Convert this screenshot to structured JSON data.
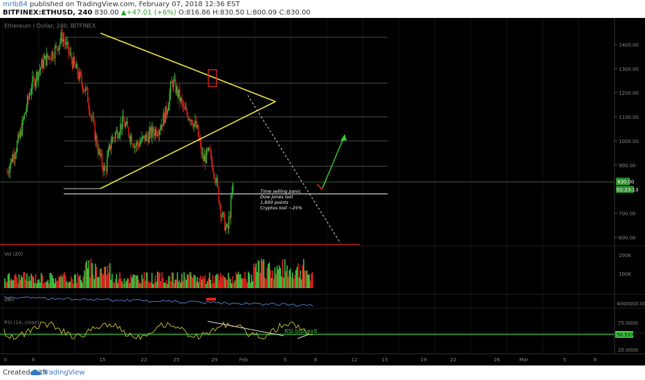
{
  "header": {
    "author": "mrlb84",
    "published": " published on TradingView.com, February 07, 2018 12:36 EST",
    "symbol": "BITFINEX:ETHUSD",
    "interval": ", 240",
    "last": "830.00",
    "change": "▲+47.01 (+6%)",
    "ohlc": "O:816.86 H:830.50 L:800.09 C:830.00"
  },
  "footer": {
    "created_with": "Created with",
    "brand": "TradingView"
  },
  "colors": {
    "bg": "#000000",
    "up": "#3fc23f",
    "down": "#e0231d",
    "wedge": "#f2e646",
    "arrow": "#37c837",
    "support": "#d82c2c",
    "obv": "#4a7cc2",
    "rsi": "#cccc33"
  },
  "chart_data": [
    {
      "type": "candlestick",
      "title": "Ethereum / Dollar, 240, BITFINEX",
      "ylim": [
        550,
        1470
      ],
      "yticks": [
        "1400.00",
        "1300.00",
        "1200.00",
        "1100.00",
        "1000.00",
        "900.00",
        "700.00",
        "600.00"
      ],
      "price_label": "830.00",
      "countdown_label": "02:23:13",
      "x_tick_labels": [
        "8",
        "15",
        "22",
        "29",
        "Feb",
        "5",
        "8",
        "12",
        "15",
        "19",
        "22",
        "26",
        "Mar",
        "5",
        "8"
      ],
      "x_tick_labels_left": [
        "9",
        "11",
        "18",
        "22",
        "25",
        "28",
        "1",
        "4",
        "7"
      ],
      "close_path": [
        [
          "Jan 1",
          870
        ],
        [
          "Jan 3",
          1010
        ],
        [
          "Jan 5",
          1230
        ],
        [
          "Jan 7",
          1330
        ],
        [
          "Jan 9",
          1380
        ],
        [
          "Jan 10",
          1435
        ],
        [
          "Jan 12",
          1310
        ],
        [
          "Jan 14",
          1200
        ],
        [
          "Jan 16",
          950
        ],
        [
          "Jan 17",
          870
        ],
        [
          "Jan 18",
          1000
        ],
        [
          "Jan 20",
          1080
        ],
        [
          "Jan 22",
          980
        ],
        [
          "Jan 24",
          1020
        ],
        [
          "Jan 26",
          1060
        ],
        [
          "Jan 27",
          1120
        ],
        [
          "Jan 28",
          1250
        ],
        [
          "Jan 29",
          1190
        ],
        [
          "Jan 30",
          1120
        ],
        [
          "Jan 31",
          1100
        ],
        [
          "Feb 1",
          1050
        ],
        [
          "Feb 2",
          920
        ],
        [
          "Feb 3",
          950
        ],
        [
          "Feb 4",
          860
        ],
        [
          "Feb 5",
          700
        ],
        [
          "Feb 6",
          620
        ],
        [
          "Feb 7",
          830
        ]
      ],
      "horizontal_levels": [
        1430,
        1240,
        1100,
        1000,
        895,
        780,
        570
      ],
      "annotation": [
        "Time selling panic",
        "Dow Jones lost",
        "1,600 points",
        "Cryptos lost ~25%"
      ]
    },
    {
      "type": "bar",
      "title": "Vol (20)",
      "yticks": [
        "200K",
        "100K"
      ]
    },
    {
      "type": "line",
      "title": "OBV",
      "yticks": [
        "-4000000.0000"
      ]
    },
    {
      "type": "line",
      "title": "RSI (14, close)",
      "yticks": [
        "75.0000",
        "25.0000"
      ],
      "current_value": "50.5377",
      "annotation": "RSI bull exit"
    }
  ]
}
